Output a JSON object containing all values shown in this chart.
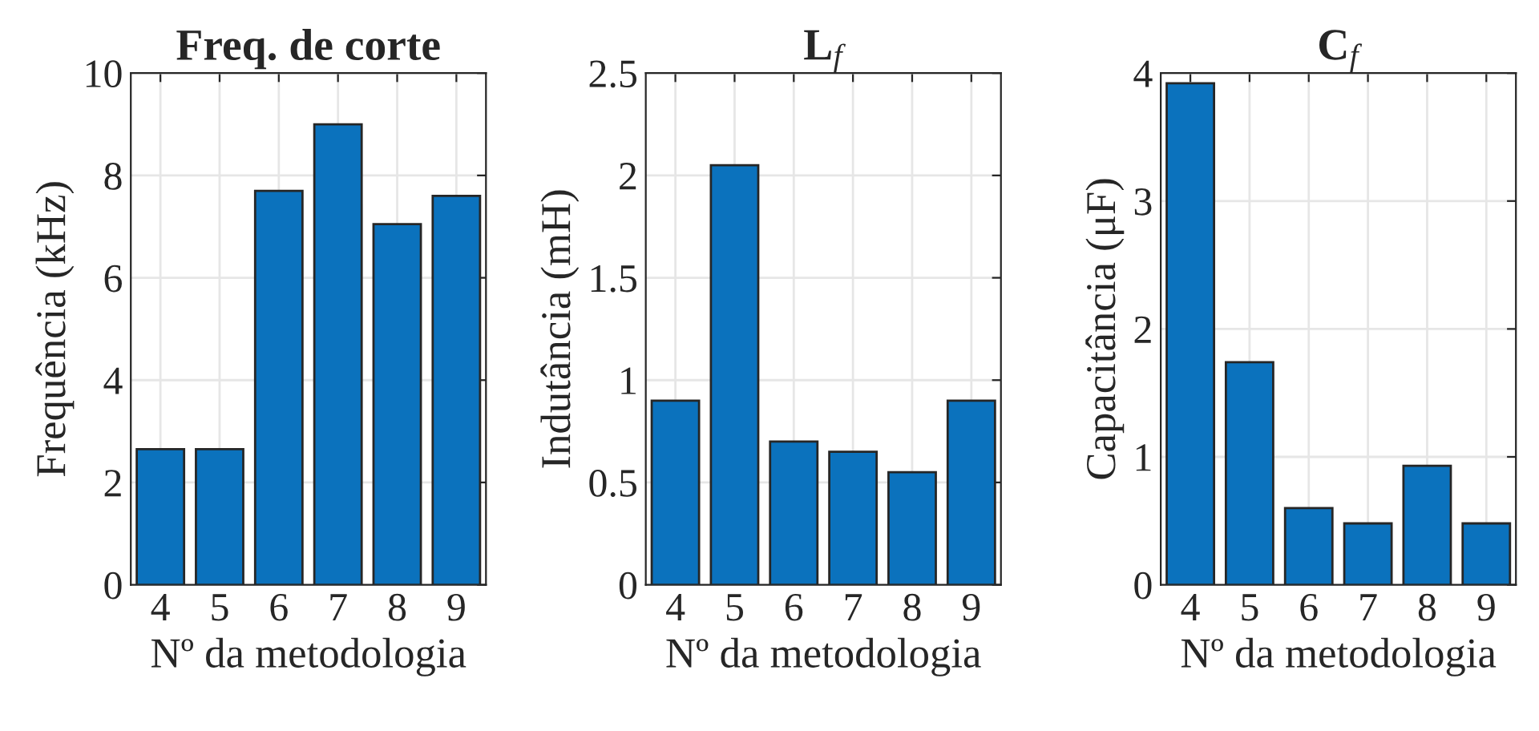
{
  "chart_data": [
    {
      "type": "bar",
      "title": "Freq. de corte",
      "xlabel": "Nº da metodologia",
      "ylabel": "Frequência (kHz)",
      "categories": [
        "4",
        "5",
        "6",
        "7",
        "8",
        "9"
      ],
      "values": [
        2.65,
        2.65,
        7.7,
        9.0,
        7.05,
        7.6
      ],
      "color": "#0b72bd",
      "ylim": [
        0,
        10
      ],
      "yticks": [
        0,
        2,
        4,
        6,
        8,
        10
      ],
      "grid": true
    },
    {
      "type": "bar",
      "title": "L$_{f}$",
      "xlabel": "Nº da metodologia",
      "ylabel": "Indutância (mH)",
      "categories": [
        "4",
        "5",
        "6",
        "7",
        "8",
        "9"
      ],
      "values": [
        0.9,
        2.05,
        0.7,
        0.65,
        0.55,
        0.9
      ],
      "color": "#0b72bd",
      "ylim": [
        0,
        2.5
      ],
      "yticks": [
        0,
        0.5,
        1,
        1.5,
        2,
        2.5
      ],
      "grid": true
    },
    {
      "type": "bar",
      "title": "C$_{f}$",
      "xlabel": "Nº da metodologia",
      "ylabel": "Capacitância (μF)",
      "categories": [
        "4",
        "5",
        "6",
        "7",
        "8",
        "9"
      ],
      "values": [
        3.92,
        1.74,
        0.6,
        0.48,
        0.93,
        0.48
      ],
      "color": "#0b72bd",
      "ylim": [
        0,
        4
      ],
      "yticks": [
        0,
        1,
        2,
        3,
        4
      ],
      "grid": true
    }
  ]
}
